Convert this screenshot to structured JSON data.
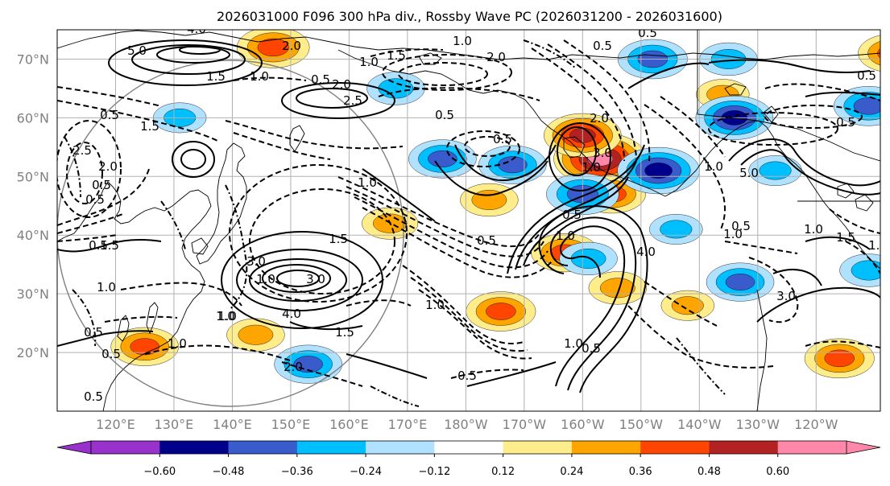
{
  "chart_data": {
    "type": "contour_map",
    "title": "2026031000 F096 300 hPa div., Rossby Wave PC (2026031200 - 2026031600)",
    "lat_range": [
      10,
      75
    ],
    "lon_range": [
      110,
      251
    ],
    "lat_ticks": [
      {
        "value": 20,
        "label": "20°N"
      },
      {
        "value": 30,
        "label": "30°N"
      },
      {
        "value": 40,
        "label": "40°N"
      },
      {
        "value": 50,
        "label": "50°N"
      },
      {
        "value": 60,
        "label": "60°N"
      },
      {
        "value": 70,
        "label": "70°N"
      }
    ],
    "lon_ticks": [
      {
        "value": 120,
        "label": "120°E"
      },
      {
        "value": 130,
        "label": "130°E"
      },
      {
        "value": 140,
        "label": "140°E"
      },
      {
        "value": 150,
        "label": "150°E"
      },
      {
        "value": 160,
        "label": "160°E"
      },
      {
        "value": 170,
        "label": "170°E"
      },
      {
        "value": 180,
        "label": "180°W"
      },
      {
        "value": 190,
        "label": "170°W"
      },
      {
        "value": 200,
        "label": "160°W"
      },
      {
        "value": 210,
        "label": "150°W"
      },
      {
        "value": 220,
        "label": "140°W"
      },
      {
        "value": 230,
        "label": "130°W"
      },
      {
        "value": 240,
        "label": "120°W"
      }
    ],
    "colorbar": {
      "bounds": [
        -0.72,
        -0.6,
        -0.48,
        -0.36,
        -0.24,
        -0.12,
        0.12,
        0.24,
        0.36,
        0.48,
        0.6,
        0.72
      ],
      "colors": [
        "#9932cc",
        "#00008b",
        "#3a5bcc",
        "#00bfff",
        "#b0e2ff",
        "#ffffff",
        "#ffec8b",
        "#ffa500",
        "#ff4500",
        "#b22222",
        "#ff88aa"
      ],
      "under_color": "#9932cc",
      "over_color": "#ff88aa",
      "tick_labels": [
        "−0.60",
        "−0.48",
        "−0.36",
        "−0.24",
        "−0.12",
        "0.12",
        "0.24",
        "0.36",
        "0.48",
        "0.60"
      ]
    },
    "divergence_features": [
      {
        "lon": 203,
        "lat": 53,
        "value": 0.66
      },
      {
        "lon": 200,
        "lat": 57,
        "value": 0.5
      },
      {
        "lon": 205,
        "lat": 47,
        "value": 0.4
      },
      {
        "lon": 197,
        "lat": 37,
        "value": 0.4
      },
      {
        "lon": 186,
        "lat": 27,
        "value": 0.42
      },
      {
        "lon": 147,
        "lat": 72,
        "value": 0.45
      },
      {
        "lon": 125,
        "lat": 21,
        "value": 0.4
      },
      {
        "lon": 253,
        "lat": 71,
        "value": 0.4
      },
      {
        "lon": 244,
        "lat": 19,
        "value": 0.42
      },
      {
        "lon": 184,
        "lat": 46,
        "value": 0.3
      },
      {
        "lon": 167,
        "lat": 42,
        "value": 0.28
      },
      {
        "lon": 144,
        "lat": 23,
        "value": 0.3
      },
      {
        "lon": 206,
        "lat": 31,
        "value": 0.3
      },
      {
        "lon": 224,
        "lat": 64,
        "value": 0.25
      },
      {
        "lon": 218,
        "lat": 28,
        "value": 0.25
      },
      {
        "lon": 213,
        "lat": 51,
        "value": -0.55
      },
      {
        "lon": 176,
        "lat": 53,
        "value": -0.4
      },
      {
        "lon": 188,
        "lat": 52,
        "value": -0.4
      },
      {
        "lon": 212,
        "lat": 70,
        "value": -0.42
      },
      {
        "lon": 226,
        "lat": 60,
        "value": -0.5
      },
      {
        "lon": 249,
        "lat": 62,
        "value": -0.42
      },
      {
        "lon": 153,
        "lat": 18,
        "value": -0.4
      },
      {
        "lon": 200,
        "lat": 47,
        "value": -0.45
      },
      {
        "lon": 227,
        "lat": 32,
        "value": -0.4
      },
      {
        "lon": 168,
        "lat": 65,
        "value": -0.3
      },
      {
        "lon": 225,
        "lat": 70,
        "value": -0.3
      },
      {
        "lon": 131,
        "lat": 60,
        "value": -0.25
      },
      {
        "lon": 249,
        "lat": 34,
        "value": -0.3
      },
      {
        "lon": 233,
        "lat": 51,
        "value": -0.25
      },
      {
        "lon": 216,
        "lat": 41,
        "value": -0.25
      },
      {
        "lon": 201,
        "lat": 36,
        "value": -0.3
      }
    ],
    "contour_labels": [
      "4.0",
      "5.0",
      "2.0",
      "1.5",
      "1.0",
      "0.5",
      "2.0",
      "2.5",
      "1.0",
      "1.5",
      "3.0",
      "1.0",
      "3.0",
      "4.0",
      "1.0",
      "1.0",
      "1.5",
      "1.0",
      "2.0",
      "0.5",
      "0.5",
      "1.0",
      "0.5",
      "1.0",
      "3.0",
      "2.0",
      "0.5",
      "0.5",
      "5.0",
      "1.0",
      "4.0",
      "1.0",
      "0.5",
      "0.5",
      "1.0",
      "1.5",
      "1.0",
      "1.0",
      "0.5",
      "0.5",
      "2.0",
      "0.5",
      "0.5",
      "1.0",
      "3.0",
      "1.5",
      "1.0",
      "0.5",
      "0.5",
      "1.5",
      "2.0",
      "0.5",
      "0.5",
      "0.5",
      "1.5",
      "1.0",
      "0.5",
      "2.5",
      "1.5",
      "0.5"
    ]
  }
}
